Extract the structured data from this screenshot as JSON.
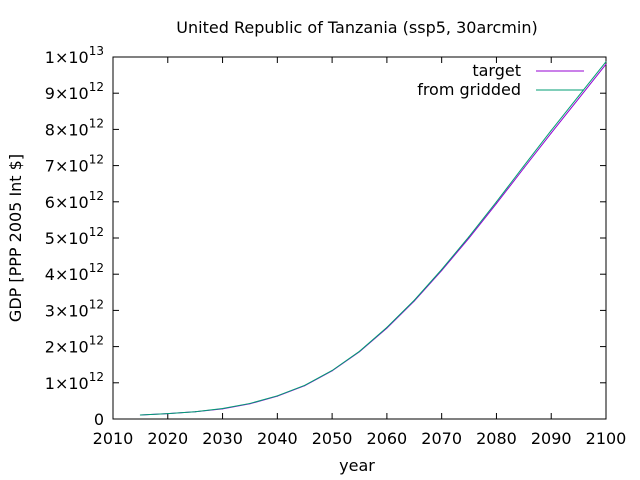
{
  "chart_data": {
    "type": "line",
    "title": "United Republic of Tanzania (ssp5, 30arcmin)",
    "xlabel": "year",
    "ylabel": "GDP [PPP 2005 Int $]",
    "xlim": [
      2010,
      2100
    ],
    "ylim": [
      0,
      10000000000000
    ],
    "grid": false,
    "legend_position": "top-right",
    "x_ticks": [
      2010,
      2020,
      2030,
      2040,
      2050,
      2060,
      2070,
      2080,
      2090,
      2100
    ],
    "y_ticks": [
      {
        "value": 0,
        "mant": "0",
        "exp": ""
      },
      {
        "value": 1000000000000,
        "mant": "1×10",
        "exp": "12"
      },
      {
        "value": 2000000000000,
        "mant": "2×10",
        "exp": "12"
      },
      {
        "value": 3000000000000,
        "mant": "3×10",
        "exp": "12"
      },
      {
        "value": 4000000000000,
        "mant": "4×10",
        "exp": "12"
      },
      {
        "value": 5000000000000,
        "mant": "5×10",
        "exp": "12"
      },
      {
        "value": 6000000000000,
        "mant": "6×10",
        "exp": "12"
      },
      {
        "value": 7000000000000,
        "mant": "7×10",
        "exp": "12"
      },
      {
        "value": 8000000000000,
        "mant": "8×10",
        "exp": "12"
      },
      {
        "value": 9000000000000,
        "mant": "9×10",
        "exp": "12"
      },
      {
        "value": 10000000000000,
        "mant": "1×10",
        "exp": "13"
      }
    ],
    "x": [
      2015,
      2020,
      2025,
      2030,
      2035,
      2040,
      2045,
      2050,
      2055,
      2060,
      2065,
      2070,
      2075,
      2080,
      2085,
      2090,
      2095,
      2100
    ],
    "series": [
      {
        "name": "target",
        "color": "#9400d3",
        "values": [
          110000000000,
          150000000000,
          200000000000,
          280000000000,
          420000000000,
          630000000000,
          920000000000,
          1330000000000,
          1860000000000,
          2510000000000,
          3260000000000,
          4100000000000,
          5000000000000,
          5950000000000,
          6930000000000,
          7900000000000,
          8850000000000,
          9800000000000
        ]
      },
      {
        "name": "from gridded",
        "color": "#009e73",
        "values": [
          110000000000,
          150000000000,
          200000000000,
          290000000000,
          430000000000,
          640000000000,
          930000000000,
          1340000000000,
          1870000000000,
          2530000000000,
          3280000000000,
          4130000000000,
          5040000000000,
          6000000000000,
          6990000000000,
          7970000000000,
          8920000000000,
          9870000000000
        ]
      }
    ]
  }
}
